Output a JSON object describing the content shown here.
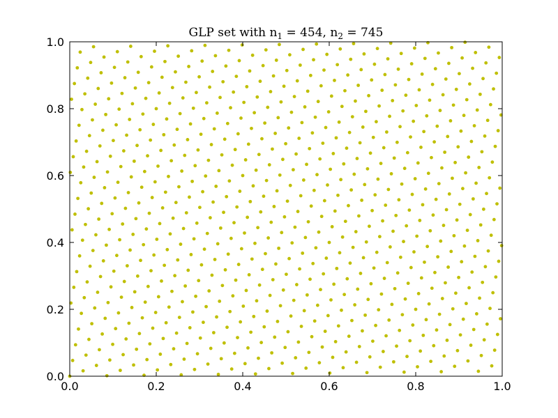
{
  "chart_data": {
    "type": "scatter",
    "title": {
      "prefix": "GLP set with ",
      "var1": "n",
      "sub1": "1",
      "eq1": " = 454,  ",
      "var2": "n",
      "sub2": "2",
      "eq2": " = 745"
    },
    "generator": {
      "n_points": 745,
      "multiplier": 454,
      "x_formula": "k/745",
      "y_formula": "frac(454*k/745)"
    },
    "xlim": [
      0.0,
      1.0
    ],
    "ylim": [
      0.0,
      1.0
    ],
    "xticks": [
      "0.0",
      "0.2",
      "0.4",
      "0.6",
      "0.8",
      "1.0"
    ],
    "yticks": [
      "0.0",
      "0.2",
      "0.4",
      "0.6",
      "0.8",
      "1.0"
    ],
    "xlabel": "",
    "ylabel": "",
    "grid": false,
    "legend": "none",
    "marker_color": "#bfbf00"
  }
}
